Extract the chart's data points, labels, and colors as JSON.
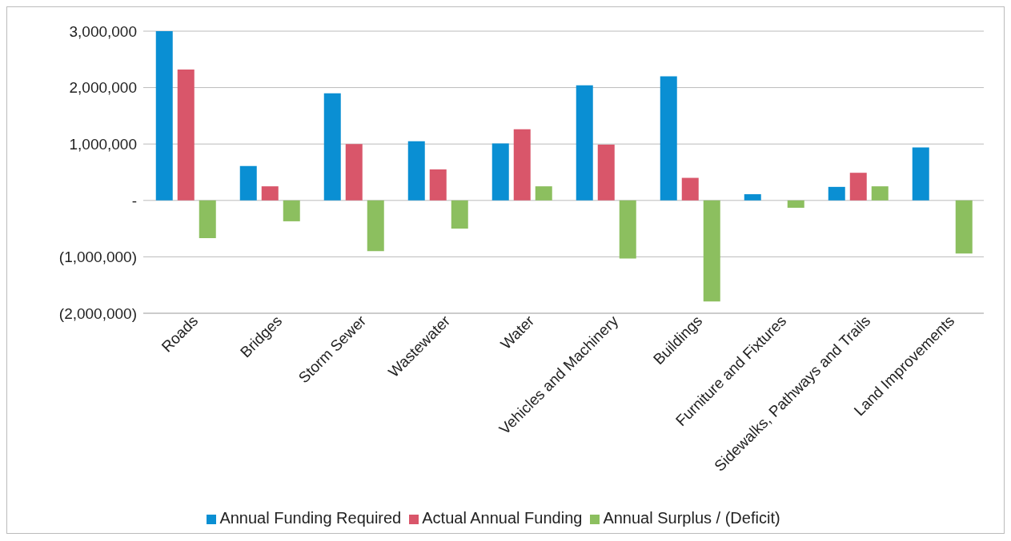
{
  "chart_data": {
    "type": "bar",
    "categories": [
      "Roads",
      "Bridges",
      "Storm Sewer",
      "Wastewater",
      "Water",
      "Vehicles and Machinery",
      "Buildings",
      "Furniture and Fixtures",
      "Sidewalks, Pathways and Trails",
      "Land Improvements"
    ],
    "series": [
      {
        "name": "Annual Funding Required",
        "color": "#0a8fd3",
        "values": [
          3000000,
          610000,
          1900000,
          1050000,
          1010000,
          2040000,
          2200000,
          110000,
          240000,
          940000
        ]
      },
      {
        "name": "Actual Annual Funding",
        "color": "#d9566a",
        "values": [
          2320000,
          250000,
          1000000,
          550000,
          1260000,
          990000,
          400000,
          0,
          490000,
          0
        ]
      },
      {
        "name": "Annual Surplus / (Deficit)",
        "color": "#8cbf5f",
        "values": [
          -670000,
          -370000,
          -900000,
          -500000,
          250000,
          -1030000,
          -1790000,
          -130000,
          250000,
          -940000
        ]
      }
    ],
    "ylim": [
      -2000000,
      3000000
    ],
    "yticks": [
      {
        "value": -2000000,
        "label": "(2,000,000)"
      },
      {
        "value": -1000000,
        "label": "(1,000,000)"
      },
      {
        "value": 0,
        "label": "-"
      },
      {
        "value": 1000000,
        "label": "1,000,000"
      },
      {
        "value": 2000000,
        "label": "2,000,000"
      },
      {
        "value": 3000000,
        "label": "3,000,000"
      }
    ],
    "grid": "y",
    "legend": "bottom"
  }
}
